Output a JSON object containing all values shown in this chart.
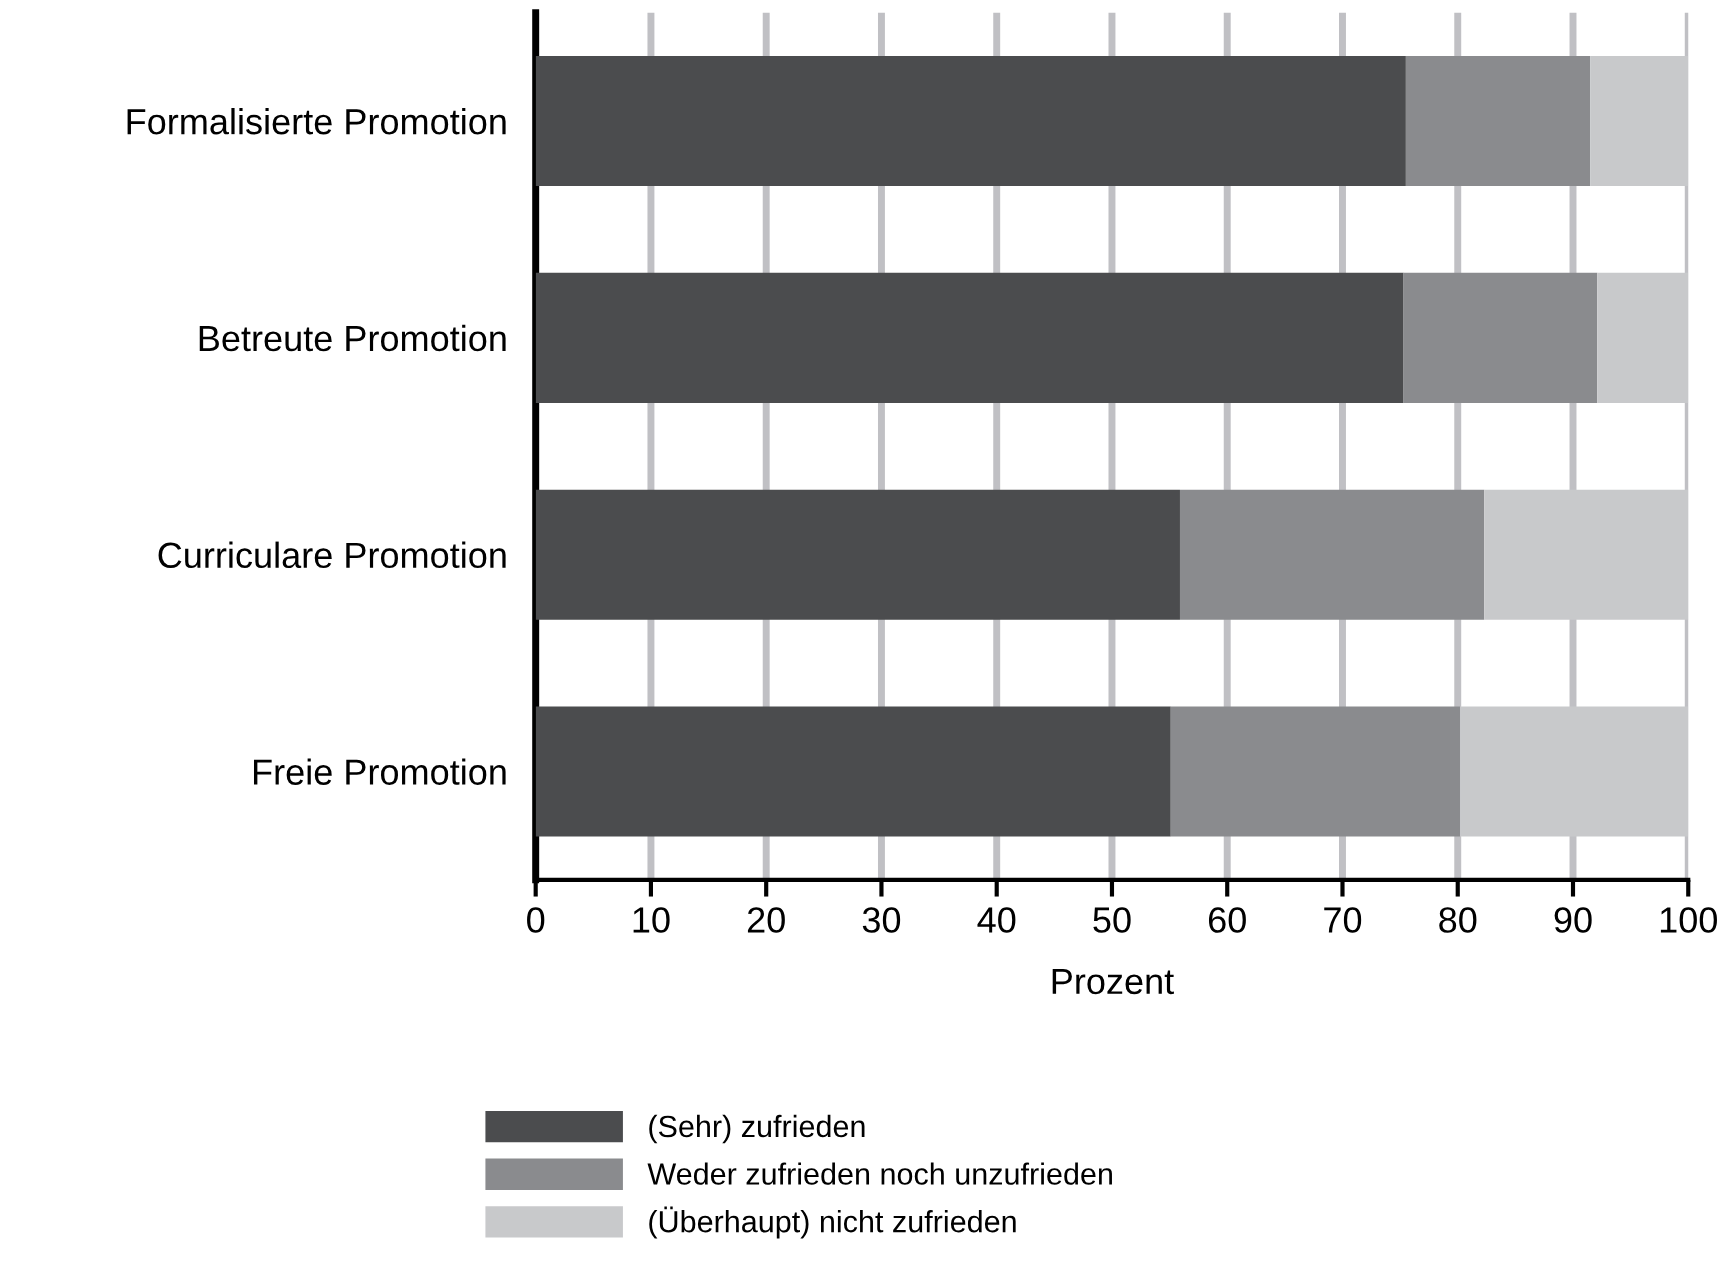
{
  "chart_data": {
    "type": "bar",
    "orientation": "horizontal",
    "stacked": true,
    "categories": [
      "Formalisierte Promotion",
      "Betreute Promotion",
      "Curriculare Promotion",
      "Freie Promotion"
    ],
    "series": [
      {
        "name": "(Sehr) zufrieden",
        "color": "#4b4c4e",
        "values": [
          75.5,
          75.3,
          55.9,
          55.1
        ]
      },
      {
        "name": "Weder zufrieden noch unzufrieden",
        "color": "#8a8b8e",
        "values": [
          16.0,
          16.8,
          26.4,
          25.1
        ]
      },
      {
        "name": "(Überhaupt) nicht zufrieden",
        "color": "#c8c9cb",
        "values": [
          8.5,
          7.9,
          17.7,
          19.8
        ]
      }
    ],
    "xlabel": "Prozent",
    "xlim": [
      0,
      100
    ],
    "xticks": [
      0,
      10,
      20,
      30,
      40,
      50,
      60,
      70,
      80,
      90,
      100
    ],
    "grid": "x",
    "legend": "bottom"
  }
}
